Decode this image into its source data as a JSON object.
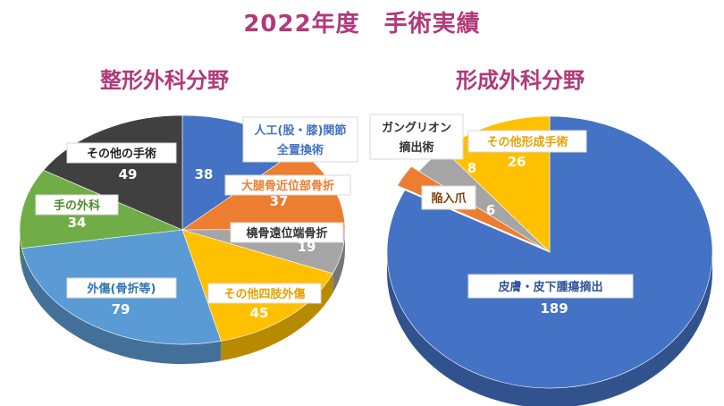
{
  "title": "2022年度　手術実績",
  "chart_data": [
    {
      "type": "pie",
      "title": "整形外科分野",
      "slices": [
        {
          "label": "人工(股・膝)関節全置換術",
          "label_lines": [
            "人工(股・膝)関節",
            "全置換術"
          ],
          "value": 38,
          "color": "#4472c4",
          "label_color": "#4472c4"
        },
        {
          "label": "大腿骨近位部骨折",
          "label_lines": [
            "大腿骨近位部骨折"
          ],
          "value": 37,
          "color": "#ed7d31",
          "label_color": "#ed7d31"
        },
        {
          "label": "橈骨遠位端骨折",
          "label_lines": [
            "橈骨遠位端骨折"
          ],
          "value": 19,
          "color": "#a5a5a5",
          "label_color": "#333333"
        },
        {
          "label": "その他四肢外傷",
          "label_lines": [
            "その他四肢外傷"
          ],
          "value": 45,
          "color": "#ffc000",
          "label_color": "#e6a000"
        },
        {
          "label": "外傷(骨折等)",
          "label_lines": [
            "外傷(骨折等)"
          ],
          "value": 79,
          "color": "#5b9bd5",
          "label_color": "#2e75b6"
        },
        {
          "label": "手の外科",
          "label_lines": [
            "手の外科"
          ],
          "value": 34,
          "color": "#70ad47",
          "label_color": "#4e8a2e"
        },
        {
          "label": "その他の手術",
          "label_lines": [
            "その他の手術"
          ],
          "value": 49,
          "color": "#404040",
          "label_color": "#222222"
        }
      ]
    },
    {
      "type": "pie",
      "title": "形成外科分野",
      "slices": [
        {
          "label": "皮膚・皮下腫瘍摘出",
          "label_lines": [
            "皮膚・皮下腫瘍摘出"
          ],
          "value": 189,
          "color": "#4472c4",
          "label_color": "#2f5597"
        },
        {
          "label": "陥入爪",
          "label_lines": [
            "陥入爪"
          ],
          "value": 6,
          "color": "#ed7d31",
          "label_color": "#843c0c"
        },
        {
          "label": "ガングリオン摘出術",
          "label_lines": [
            "ガングリオン",
            "摘出術"
          ],
          "value": 8,
          "color": "#a5a5a5",
          "label_color": "#333333"
        },
        {
          "label": "その他形成手術",
          "label_lines": [
            "その他形成手術"
          ],
          "value": 26,
          "color": "#ffc000",
          "label_color": "#e6a000"
        }
      ]
    }
  ]
}
